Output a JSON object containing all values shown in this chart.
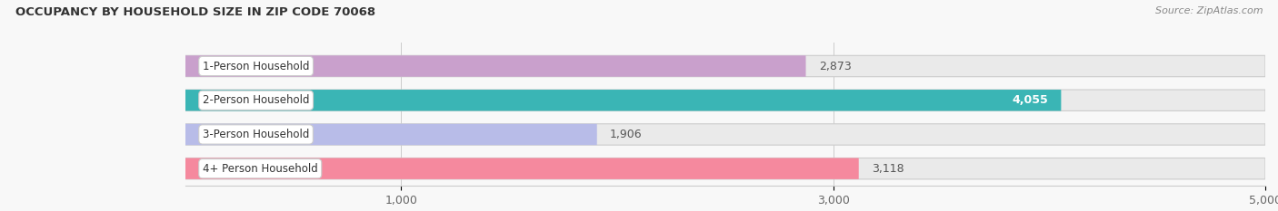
{
  "title": "OCCUPANCY BY HOUSEHOLD SIZE IN ZIP CODE 70068",
  "source": "Source: ZipAtlas.com",
  "categories": [
    "1-Person Household",
    "2-Person Household",
    "3-Person Household",
    "4+ Person Household"
  ],
  "values": [
    2873,
    4055,
    1906,
    3118
  ],
  "bar_colors": [
    "#c9a0cc",
    "#3ab5b5",
    "#b8bce8",
    "#f5899e"
  ],
  "bar_bg_color": "#eaeaea",
  "xlim": [
    0,
    5000
  ],
  "xticks": [
    1000,
    3000,
    5000
  ],
  "label_values": [
    "2,873",
    "4,055",
    "1,906",
    "3,118"
  ],
  "figsize": [
    14.06,
    2.33
  ],
  "dpi": 100,
  "background_color": "#f8f8f8"
}
